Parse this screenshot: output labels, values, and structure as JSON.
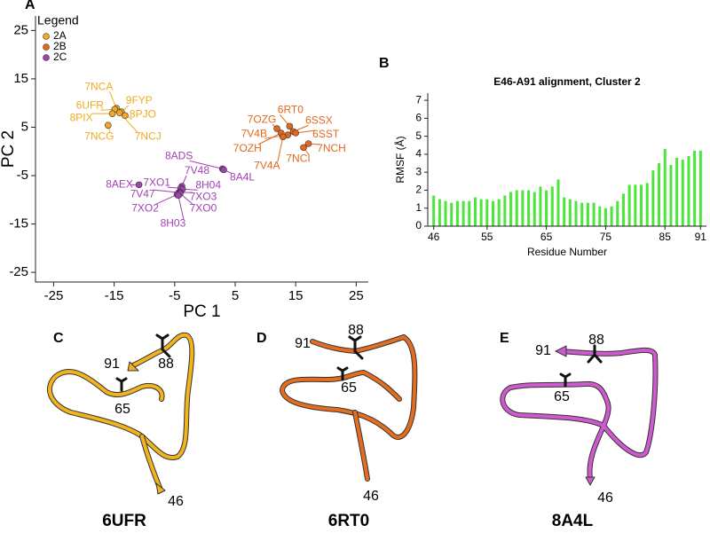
{
  "chart_data": [
    {
      "type": "scatter",
      "panel": "A",
      "xlabel": "PC 1",
      "ylabel": "PC 2",
      "legend_title": "Legend",
      "legend": "top-left",
      "xlim": [
        -28,
        27
      ],
      "ylim": [
        -27,
        28
      ],
      "xticks": [
        -25,
        -15,
        -5,
        5,
        15,
        25
      ],
      "yticks": [
        -25,
        -15,
        -5,
        5,
        15,
        25
      ],
      "series": [
        {
          "name": "2A",
          "color": "#f2a922",
          "labels": [
            "7NCA",
            "6UFR",
            "9FYP",
            "8PJO",
            "8PIX",
            "7NCG",
            "7NCJ"
          ],
          "x": [
            -14.6,
            -14.9,
            -13.8,
            -13.2,
            -15.3,
            -16.0,
            -14.1
          ],
          "y": [
            8.9,
            8.7,
            8.2,
            7.4,
            7.8,
            5.4,
            8.0
          ]
        },
        {
          "name": "2B",
          "color": "#e2681c",
          "labels": [
            "6RT0",
            "7OZG",
            "6SSX",
            "6SST",
            "7V4B",
            "7OZH",
            "7NCH",
            "7NCI",
            "7V4A"
          ],
          "x": [
            14.0,
            11.9,
            14.6,
            15.0,
            13.7,
            12.6,
            17.1,
            16.3,
            12.9
          ],
          "y": [
            5.2,
            4.7,
            4.1,
            3.8,
            3.4,
            3.8,
            1.6,
            0.8,
            3.0
          ]
        },
        {
          "name": "2C",
          "color": "#a241b4",
          "labels": [
            "8ADS",
            "8A4L",
            "8AEX",
            "7V48",
            "7XO1",
            "8H04",
            "7V47",
            "7XO3",
            "7XO2",
            "7XO0",
            "8H03"
          ],
          "x": [
            2.9,
            3.1,
            -10.9,
            -3.8,
            -4.0,
            -3.7,
            -4.3,
            -4.1,
            -4.6,
            -4.1,
            -4.4
          ],
          "y": [
            -3.6,
            -3.8,
            -6.9,
            -7.2,
            -7.6,
            -7.8,
            -8.5,
            -8.5,
            -8.9,
            -8.7,
            -9.1
          ]
        }
      ]
    },
    {
      "type": "bar",
      "panel": "B",
      "title": "E46-A91 alignment, Cluster 2",
      "xlabel": "Residue Number",
      "ylabel": "RMSF (Å)",
      "color": "#4de53b",
      "x": [
        46,
        47,
        48,
        49,
        50,
        51,
        52,
        53,
        54,
        55,
        56,
        57,
        58,
        59,
        60,
        61,
        62,
        63,
        64,
        65,
        66,
        67,
        68,
        69,
        70,
        71,
        72,
        73,
        74,
        75,
        76,
        77,
        78,
        79,
        80,
        81,
        82,
        83,
        84,
        85,
        86,
        87,
        88,
        89,
        90,
        91
      ],
      "values": [
        1.7,
        1.5,
        1.4,
        1.3,
        1.4,
        1.4,
        1.4,
        1.6,
        1.5,
        1.5,
        1.4,
        1.5,
        1.7,
        1.9,
        2.0,
        2.0,
        2.0,
        1.9,
        2.2,
        2.0,
        2.2,
        2.6,
        1.6,
        1.5,
        1.4,
        1.3,
        1.3,
        1.3,
        1.1,
        1.0,
        1.1,
        1.4,
        1.8,
        2.3,
        2.3,
        2.3,
        2.4,
        3.1,
        3.5,
        4.3,
        3.4,
        3.8,
        3.7,
        3.9,
        4.2,
        4.2
      ],
      "xlim": [
        45,
        92
      ],
      "ylim": [
        0,
        7.4
      ],
      "xticks": [
        46,
        55,
        65,
        75,
        85,
        91
      ],
      "yticks": [
        0,
        1,
        2,
        3,
        4,
        5,
        6,
        7
      ]
    }
  ],
  "structures": [
    {
      "panel": "C",
      "name": "6UFR",
      "labels": [
        "91",
        "88",
        "65",
        "46"
      ]
    },
    {
      "panel": "D",
      "name": "6RT0",
      "labels": [
        "91",
        "88",
        "65",
        "46"
      ]
    },
    {
      "panel": "E",
      "name": "8A4L",
      "labels": [
        "91",
        "88",
        "65",
        "46"
      ]
    }
  ]
}
